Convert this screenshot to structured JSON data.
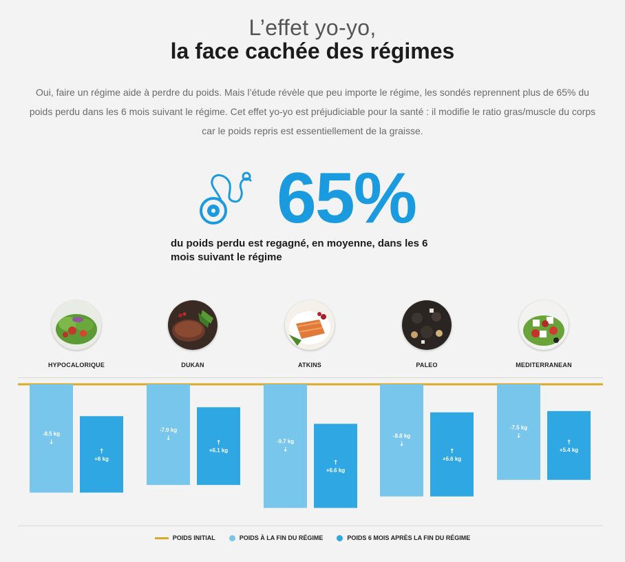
{
  "header": {
    "title_light": "L’effet yo-yo,",
    "title_bold": "la face cachée des régimes"
  },
  "intro": {
    "line1": "Oui, faire un régime aide à perdre du poids. Mais l’étude révèle que peu importe le régime, les sondés reprennent plus de 65% du",
    "line2": "poids perdu dans les 6 mois suivant le régime. Cet effet yo-yo est préjudiciable pour la santé : il modifie le ratio gras/muscle du corps",
    "line3": "car le poids repris est essentiellement de la graisse."
  },
  "highlight": {
    "icon": "measuring-tape-icon",
    "value": "65%",
    "caption_line1": "du poids perdu est regagné, en moyenne, dans les 6",
    "caption_line2": "mois suivant le régime"
  },
  "colors": {
    "initial": "#d9a928",
    "end_of_diet": "#79c6ec",
    "six_months": "#2ea7e3",
    "highlight": "#1a9be0"
  },
  "chart_data": {
    "type": "bar",
    "title": "",
    "categories": [
      "HYPOCALORIQUE",
      "DUKAN",
      "ATKINS",
      "PALEO",
      "MEDITERRANEAN"
    ],
    "baseline_label": "POIDS INITIAL",
    "series": [
      {
        "name": "POIDS À LA FIN DU RÉGIME",
        "values": [
          -8.5,
          -7.9,
          -9.7,
          -8.8,
          -7.5
        ],
        "labels": [
          "-8.5 kg",
          "-7.9 kg",
          "-9.7 kg",
          "-8.8 kg",
          "-7.5 kg"
        ],
        "arrow": "↓"
      },
      {
        "name": "POIDS 6 MOIS APRÈS LA FIN DU RÉGIME",
        "values": [
          6,
          6.1,
          6.6,
          6.6,
          5.4
        ],
        "labels": [
          "+6 kg",
          "+6.1 kg",
          "+6.6 kg",
          "+6.6 kg",
          "+5.4 kg"
        ],
        "arrow": "↑"
      }
    ],
    "ylabel": "kg",
    "ylim": [
      -9.7,
      0
    ],
    "legend_position": "bottom"
  },
  "legend": {
    "initial": "POIDS INITIAL",
    "end": "POIDS À LA FIN DU RÉGIME",
    "after": "POIDS 6 MOIS APRÈS LA FIN DU RÉGIME"
  }
}
